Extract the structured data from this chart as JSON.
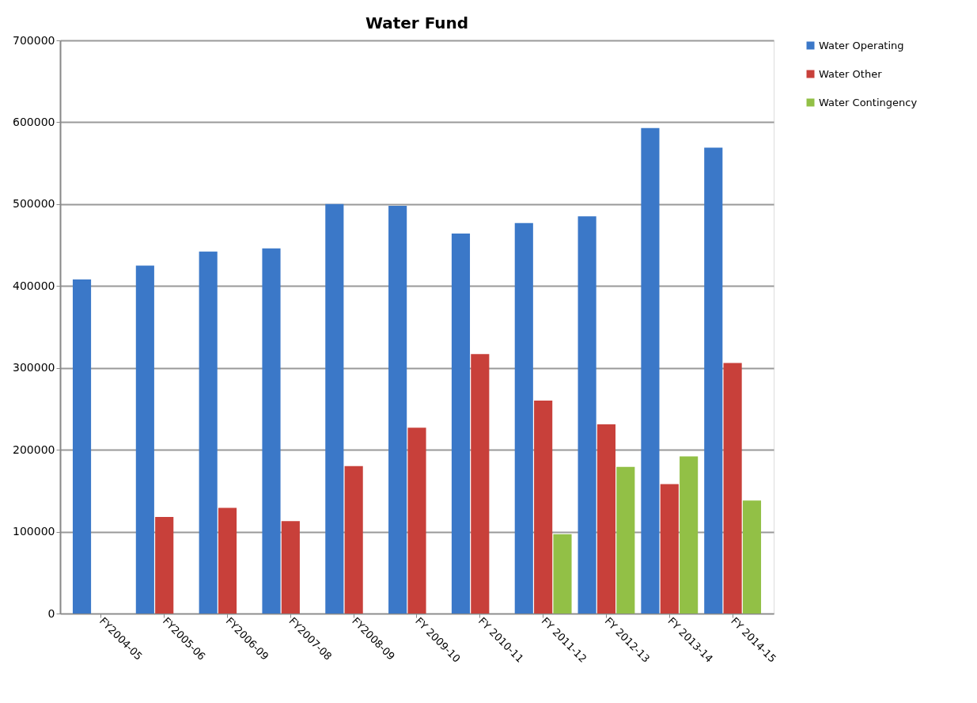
{
  "chart_data": {
    "type": "bar",
    "title": "Water Fund",
    "categories": [
      "FY2004-05",
      "FY2005-06",
      "FY2006-09",
      "FY2007-08",
      "FY2008-09",
      "FY 2009-10",
      "FY 2010-11",
      "FY 2011-12",
      "FY 2012-13",
      "FY 2013-14",
      "FY 2014-15"
    ],
    "series": [
      {
        "name": "Water Operating",
        "color": "#3b78c8",
        "values": [
          408000,
          425000,
          442000,
          446000,
          500000,
          498000,
          464000,
          477000,
          485000,
          593000,
          569000
        ]
      },
      {
        "name": "Water Other",
        "color": "#c8403a",
        "values": [
          null,
          118000,
          129000,
          113000,
          180000,
          227000,
          317000,
          260000,
          231000,
          158000,
          306000
        ]
      },
      {
        "name": "Water Contingency",
        "color": "#92c046",
        "values": [
          null,
          null,
          null,
          null,
          null,
          null,
          null,
          97000,
          179000,
          192000,
          138000
        ]
      }
    ],
    "ylim": [
      0,
      700000
    ],
    "yticks": [
      0,
      100000,
      200000,
      300000,
      400000,
      500000,
      600000,
      700000
    ],
    "grid": "y",
    "legend": "right"
  }
}
